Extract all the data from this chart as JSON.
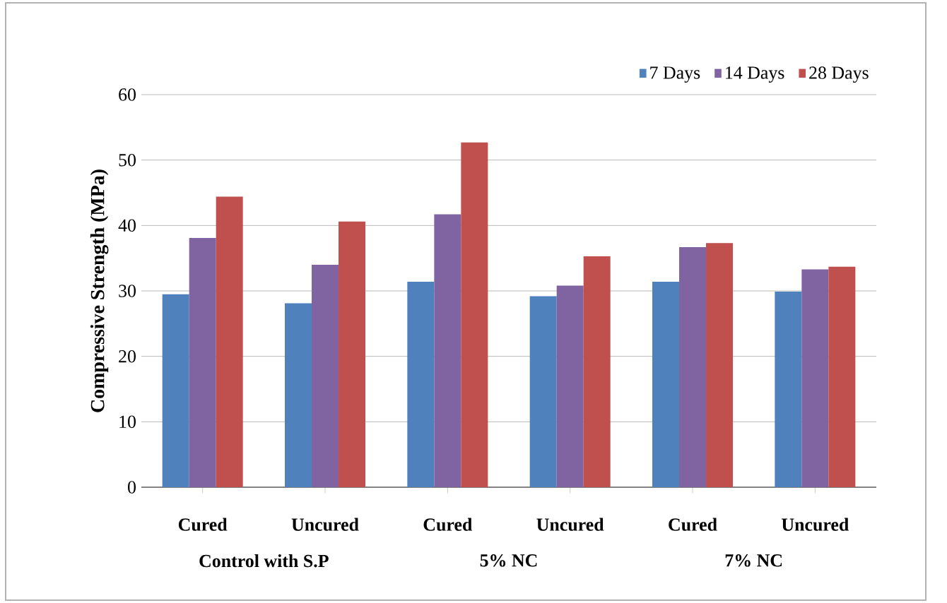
{
  "chart_data": {
    "type": "bar",
    "ylabel": "Compressive Strength (MPa)",
    "categories": [
      "Cured",
      "Uncured",
      "Cured",
      "Uncured",
      "Cured",
      "Uncured"
    ],
    "series": [
      {
        "name": "7 Days",
        "color": "#4f81bd",
        "values": [
          29.5,
          28.1,
          31.4,
          29.2,
          31.4,
          29.9
        ]
      },
      {
        "name": "14 Days",
        "color": "#8064a2",
        "values": [
          38.1,
          34.0,
          41.7,
          30.8,
          36.7,
          33.3
        ]
      },
      {
        "name": "28 Days",
        "color": "#c0504d",
        "values": [
          44.4,
          40.6,
          52.7,
          35.3,
          37.3,
          33.7
        ]
      }
    ],
    "annotations": [
      "Control with S.P",
      "5% NC",
      "7% NC"
    ],
    "ylim": [
      0,
      60
    ],
    "yticks": [
      0,
      10,
      20,
      30,
      40,
      50,
      60
    ],
    "grid": "y",
    "legend": "top right"
  }
}
